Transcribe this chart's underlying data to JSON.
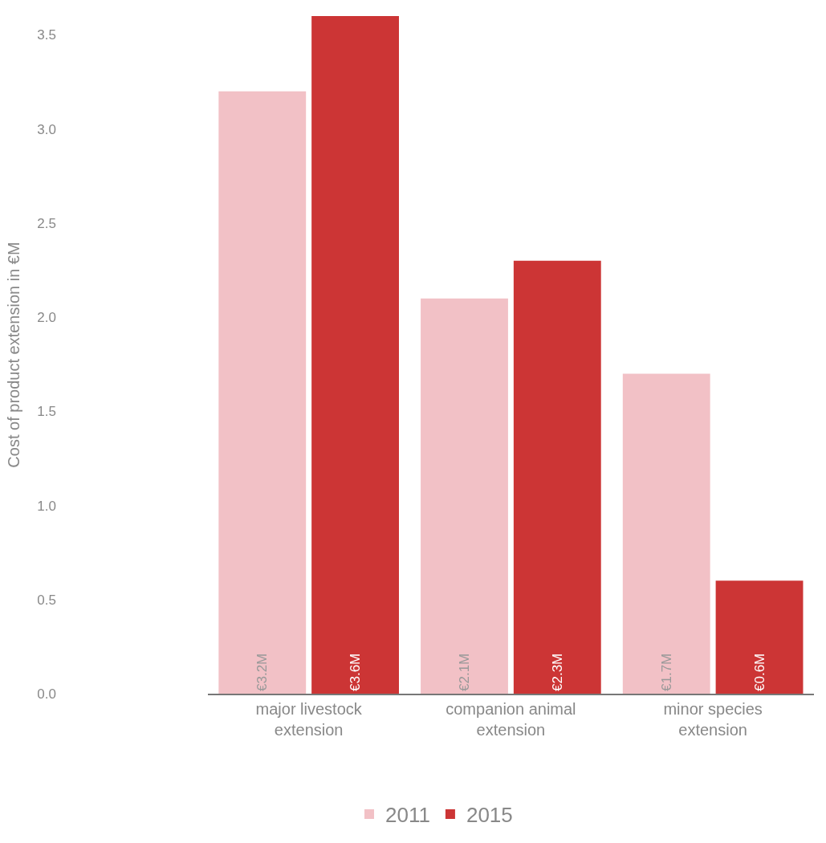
{
  "chart_data": {
    "type": "bar",
    "ylabel": "Cost of product extension in €M",
    "categories": [
      "major livestock extension",
      "companion animal extension",
      "minor species extension"
    ],
    "series": [
      {
        "name": "2011",
        "color": "#f2c1c6",
        "values": [
          3.2,
          2.1,
          1.7
        ],
        "value_labels": [
          "€3.2M",
          "€2.1M",
          "€1.7M"
        ]
      },
      {
        "name": "2015",
        "color": "#cc3535",
        "values": [
          3.6,
          2.3,
          0.6
        ],
        "value_labels": [
          "€3.6M",
          "€2.3M",
          "€0.6M"
        ]
      }
    ],
    "ylim": [
      0,
      3.6
    ],
    "yticks": [
      {
        "value": 0,
        "label": "0.0"
      },
      {
        "value": 0.5,
        "label": "0.5"
      },
      {
        "value": 1,
        "label": "1.0"
      },
      {
        "value": 1.5,
        "label": "1.5"
      },
      {
        "value": 2,
        "label": "2.0"
      },
      {
        "value": 2.5,
        "label": "2.5"
      },
      {
        "value": 3,
        "label": "3.0"
      },
      {
        "value": 3.5,
        "label": "3.5"
      }
    ],
    "legend": "bottom"
  }
}
